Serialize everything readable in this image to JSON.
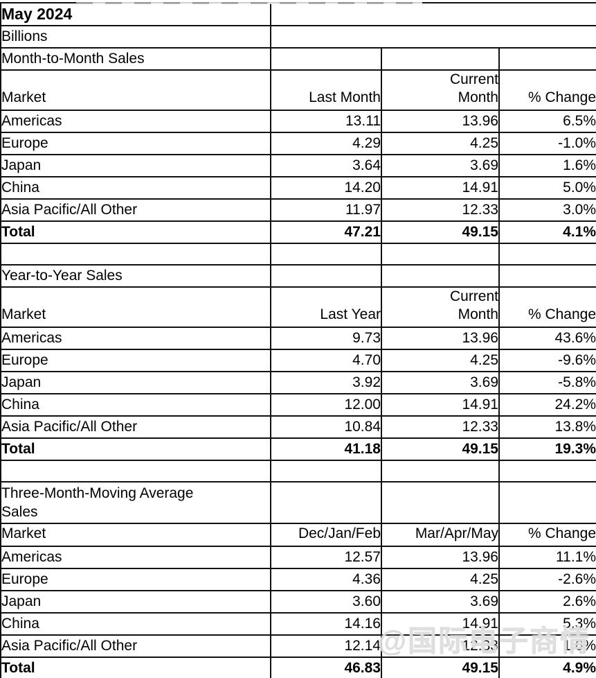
{
  "page": {
    "title": "May 2024",
    "units": "Billions",
    "watermark": "@国际电子商情"
  },
  "sections": [
    {
      "label": "Month-to-Month Sales",
      "columns": [
        "Market",
        "Last Month",
        "Current\nMonth",
        "% Change"
      ],
      "rows": [
        {
          "market": "Americas",
          "col1": "13.11",
          "col2": "13.96",
          "change": "6.5%"
        },
        {
          "market": "Europe",
          "col1": "4.29",
          "col2": "4.25",
          "change": "-1.0%"
        },
        {
          "market": "Japan",
          "col1": "3.64",
          "col2": "3.69",
          "change": "1.6%"
        },
        {
          "market": "China",
          "col1": "14.20",
          "col2": "14.91",
          "change": "5.0%"
        },
        {
          "market": "Asia Pacific/All Other",
          "col1": "11.97",
          "col2": "12.33",
          "change": "3.0%"
        },
        {
          "market": "Total",
          "col1": "47.21",
          "col2": "49.15",
          "change": "4.1%"
        }
      ]
    },
    {
      "label": "Year-to-Year Sales",
      "columns": [
        "Market",
        "Last Year",
        "Current\nMonth",
        "% Change"
      ],
      "rows": [
        {
          "market": "Americas",
          "col1": "9.73",
          "col2": "13.96",
          "change": "43.6%"
        },
        {
          "market": "Europe",
          "col1": "4.70",
          "col2": "4.25",
          "change": "-9.6%"
        },
        {
          "market": "Japan",
          "col1": "3.92",
          "col2": "3.69",
          "change": "-5.8%"
        },
        {
          "market": "China",
          "col1": "12.00",
          "col2": "14.91",
          "change": "24.2%"
        },
        {
          "market": "Asia Pacific/All Other",
          "col1": "10.84",
          "col2": "12.33",
          "change": "13.8%"
        },
        {
          "market": "Total",
          "col1": "41.18",
          "col2": "49.15",
          "change": "19.3%"
        }
      ]
    },
    {
      "label": "Three-Month-Moving Average\nSales",
      "columns": [
        "Market",
        "Dec/Jan/Feb",
        "Mar/Apr/May",
        "% Change"
      ],
      "rows": [
        {
          "market": "Americas",
          "col1": "12.57",
          "col2": "13.96",
          "change": "11.1%"
        },
        {
          "market": "Europe",
          "col1": "4.36",
          "col2": "4.25",
          "change": "-2.6%"
        },
        {
          "market": "Japan",
          "col1": "3.60",
          "col2": "3.69",
          "change": "2.6%"
        },
        {
          "market": "China",
          "col1": "14.16",
          "col2": "14.91",
          "change": "5.3%"
        },
        {
          "market": "Asia Pacific/All Other",
          "col1": "12.14",
          "col2": "12.33",
          "change": "1.6%"
        },
        {
          "market": "Total",
          "col1": "46.83",
          "col2": "49.15",
          "change": "4.9%"
        }
      ]
    }
  ]
}
